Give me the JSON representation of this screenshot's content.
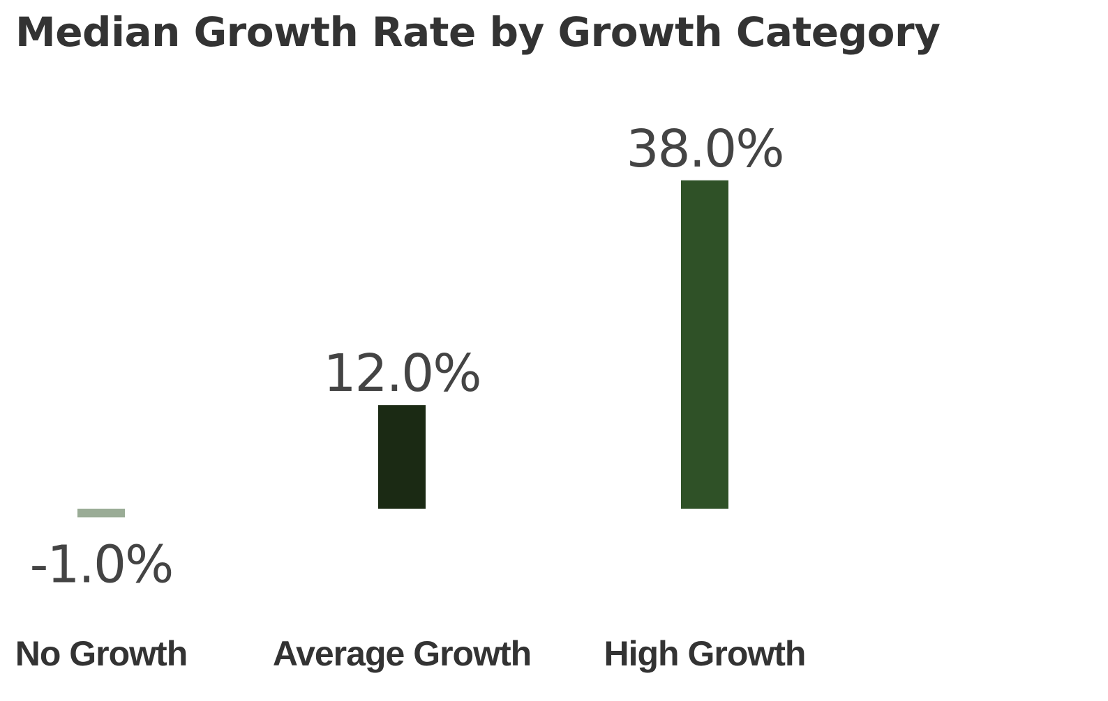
{
  "chart_data": {
    "type": "bar",
    "title": "Median Growth Rate by Growth Category",
    "xlabel": "",
    "ylabel": "",
    "categories": [
      "No Growth",
      "Average Growth",
      "High Growth"
    ],
    "values": [
      -1.0,
      12.0,
      38.0
    ],
    "data_labels": [
      "-1.0%",
      "12.0%",
      "38.0%"
    ],
    "colors": [
      "#9aac96",
      "#1b2a14",
      "#2f5127"
    ],
    "ylim": [
      -1.0,
      38.0
    ],
    "grid": false,
    "legend": "none"
  }
}
